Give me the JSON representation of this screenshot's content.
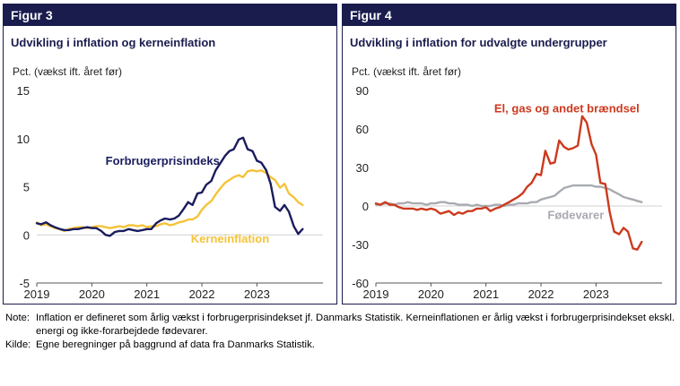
{
  "charts": [
    {
      "fig_label": "Figur 3",
      "title": "Udvikling i inflation og kerneinflation",
      "ylabel": "Pct. (vækst ift. året før)"
    },
    {
      "fig_label": "Figur 4",
      "title": "Udvikling i inflation for udvalgte undergrupper",
      "ylabel": "Pct. (vækst ift. året før)"
    }
  ],
  "chart_data": [
    {
      "type": "line",
      "ylim": [
        -5,
        15
      ],
      "yticks": [
        15,
        10,
        5,
        0,
        -5
      ],
      "xlim": [
        2019,
        2024.2
      ],
      "xticks": [
        2019,
        2020,
        2021,
        2022,
        2023
      ],
      "xtick_labels": [
        "2019",
        "2020",
        "2021",
        "2022",
        "2023"
      ],
      "grid": false,
      "series": [
        {
          "name": "Forbrugerprisindeks",
          "color": "#1a1c5e",
          "label_pos": [
            2020.25,
            7.3
          ],
          "points": [
            [
              2019.0,
              1.2
            ],
            [
              2019.08,
              1.1
            ],
            [
              2019.17,
              1.3
            ],
            [
              2019.25,
              1.0
            ],
            [
              2019.33,
              0.8
            ],
            [
              2019.42,
              0.6
            ],
            [
              2019.5,
              0.5
            ],
            [
              2019.58,
              0.5
            ],
            [
              2019.67,
              0.6
            ],
            [
              2019.75,
              0.6
            ],
            [
              2019.83,
              0.7
            ],
            [
              2019.92,
              0.8
            ],
            [
              2020.0,
              0.7
            ],
            [
              2020.08,
              0.7
            ],
            [
              2020.17,
              0.4
            ],
            [
              2020.25,
              0.0
            ],
            [
              2020.33,
              -0.1
            ],
            [
              2020.42,
              0.3
            ],
            [
              2020.5,
              0.4
            ],
            [
              2020.58,
              0.4
            ],
            [
              2020.67,
              0.6
            ],
            [
              2020.75,
              0.5
            ],
            [
              2020.83,
              0.4
            ],
            [
              2020.92,
              0.5
            ],
            [
              2021.0,
              0.6
            ],
            [
              2021.08,
              0.6
            ],
            [
              2021.17,
              1.2
            ],
            [
              2021.25,
              1.5
            ],
            [
              2021.33,
              1.7
            ],
            [
              2021.42,
              1.6
            ],
            [
              2021.5,
              1.7
            ],
            [
              2021.58,
              2.0
            ],
            [
              2021.67,
              2.7
            ],
            [
              2021.75,
              3.4
            ],
            [
              2021.83,
              3.1
            ],
            [
              2021.92,
              4.3
            ],
            [
              2022.0,
              4.4
            ],
            [
              2022.08,
              5.2
            ],
            [
              2022.17,
              5.6
            ],
            [
              2022.25,
              6.7
            ],
            [
              2022.33,
              7.4
            ],
            [
              2022.42,
              8.2
            ],
            [
              2022.5,
              8.7
            ],
            [
              2022.58,
              8.9
            ],
            [
              2022.67,
              9.9
            ],
            [
              2022.75,
              10.1
            ],
            [
              2022.83,
              8.9
            ],
            [
              2022.92,
              8.7
            ],
            [
              2023.0,
              7.7
            ],
            [
              2023.08,
              7.5
            ],
            [
              2023.17,
              6.7
            ],
            [
              2023.25,
              5.3
            ],
            [
              2023.33,
              2.9
            ],
            [
              2023.42,
              2.5
            ],
            [
              2023.5,
              3.1
            ],
            [
              2023.58,
              2.4
            ],
            [
              2023.67,
              0.9
            ],
            [
              2023.75,
              0.1
            ],
            [
              2023.83,
              0.6
            ]
          ]
        },
        {
          "name": "Kerneinflation",
          "color": "#f5c33a",
          "label_pos": [
            2021.8,
            -0.8
          ],
          "points": [
            [
              2019.0,
              1.3
            ],
            [
              2019.08,
              1.0
            ],
            [
              2019.17,
              1.1
            ],
            [
              2019.25,
              0.9
            ],
            [
              2019.33,
              0.7
            ],
            [
              2019.42,
              0.6
            ],
            [
              2019.5,
              0.4
            ],
            [
              2019.58,
              0.6
            ],
            [
              2019.67,
              0.7
            ],
            [
              2019.75,
              0.8
            ],
            [
              2019.83,
              0.8
            ],
            [
              2019.92,
              0.7
            ],
            [
              2020.0,
              0.8
            ],
            [
              2020.08,
              0.9
            ],
            [
              2020.17,
              0.9
            ],
            [
              2020.25,
              0.8
            ],
            [
              2020.33,
              0.7
            ],
            [
              2020.42,
              0.8
            ],
            [
              2020.5,
              0.9
            ],
            [
              2020.58,
              0.8
            ],
            [
              2020.67,
              1.0
            ],
            [
              2020.75,
              1.0
            ],
            [
              2020.83,
              0.9
            ],
            [
              2020.92,
              1.0
            ],
            [
              2021.0,
              0.8
            ],
            [
              2021.08,
              0.9
            ],
            [
              2021.17,
              0.9
            ],
            [
              2021.25,
              1.1
            ],
            [
              2021.33,
              1.2
            ],
            [
              2021.42,
              1.0
            ],
            [
              2021.5,
              1.1
            ],
            [
              2021.58,
              1.3
            ],
            [
              2021.67,
              1.4
            ],
            [
              2021.75,
              1.6
            ],
            [
              2021.83,
              1.6
            ],
            [
              2021.92,
              1.9
            ],
            [
              2022.0,
              2.6
            ],
            [
              2022.08,
              3.1
            ],
            [
              2022.17,
              3.5
            ],
            [
              2022.25,
              4.2
            ],
            [
              2022.33,
              4.8
            ],
            [
              2022.42,
              5.4
            ],
            [
              2022.5,
              5.7
            ],
            [
              2022.58,
              6.0
            ],
            [
              2022.67,
              6.2
            ],
            [
              2022.75,
              6.0
            ],
            [
              2022.83,
              6.6
            ],
            [
              2022.92,
              6.7
            ],
            [
              2023.0,
              6.6
            ],
            [
              2023.08,
              6.7
            ],
            [
              2023.17,
              6.4
            ],
            [
              2023.25,
              6.0
            ],
            [
              2023.33,
              5.7
            ],
            [
              2023.42,
              4.9
            ],
            [
              2023.5,
              5.3
            ],
            [
              2023.58,
              4.3
            ],
            [
              2023.67,
              3.9
            ],
            [
              2023.75,
              3.4
            ],
            [
              2023.83,
              3.1
            ]
          ]
        }
      ]
    },
    {
      "type": "line",
      "ylim": [
        -60,
        90
      ],
      "yticks": [
        90,
        60,
        30,
        0,
        -30,
        -60
      ],
      "xlim": [
        2019,
        2024.2
      ],
      "xticks": [
        2019,
        2020,
        2021,
        2022,
        2023
      ],
      "xtick_labels": [
        "2019",
        "2020",
        "2021",
        "2022",
        "2023"
      ],
      "grid": false,
      "series": [
        {
          "name": "El, gas og andet brændsel",
          "color": "#cc3a1e",
          "label_pos": [
            2021.15,
            73
          ],
          "points": [
            [
              2019.0,
              2
            ],
            [
              2019.08,
              1
            ],
            [
              2019.17,
              3
            ],
            [
              2019.25,
              1
            ],
            [
              2019.33,
              1
            ],
            [
              2019.42,
              -1
            ],
            [
              2019.5,
              -2
            ],
            [
              2019.58,
              -2
            ],
            [
              2019.67,
              -2
            ],
            [
              2019.75,
              -3
            ],
            [
              2019.83,
              -2
            ],
            [
              2019.92,
              -3
            ],
            [
              2020.0,
              -2
            ],
            [
              2020.08,
              -3
            ],
            [
              2020.17,
              -6
            ],
            [
              2020.25,
              -5
            ],
            [
              2020.33,
              -4
            ],
            [
              2020.42,
              -7
            ],
            [
              2020.5,
              -5
            ],
            [
              2020.58,
              -6
            ],
            [
              2020.67,
              -4
            ],
            [
              2020.75,
              -4
            ],
            [
              2020.83,
              -2
            ],
            [
              2020.92,
              -2
            ],
            [
              2021.0,
              -1
            ],
            [
              2021.08,
              -4
            ],
            [
              2021.17,
              -2
            ],
            [
              2021.25,
              -1
            ],
            [
              2021.33,
              1
            ],
            [
              2021.42,
              3
            ],
            [
              2021.5,
              5
            ],
            [
              2021.58,
              7
            ],
            [
              2021.67,
              10
            ],
            [
              2021.75,
              15
            ],
            [
              2021.83,
              18
            ],
            [
              2021.92,
              25
            ],
            [
              2022.0,
              24
            ],
            [
              2022.08,
              43
            ],
            [
              2022.17,
              33
            ],
            [
              2022.25,
              34
            ],
            [
              2022.33,
              51
            ],
            [
              2022.42,
              46
            ],
            [
              2022.5,
              44
            ],
            [
              2022.58,
              45
            ],
            [
              2022.67,
              47
            ],
            [
              2022.75,
              70
            ],
            [
              2022.83,
              65
            ],
            [
              2022.92,
              48
            ],
            [
              2023.0,
              40
            ],
            [
              2023.08,
              18
            ],
            [
              2023.17,
              17
            ],
            [
              2023.25,
              -5
            ],
            [
              2023.33,
              -20
            ],
            [
              2023.42,
              -22
            ],
            [
              2023.5,
              -17
            ],
            [
              2023.58,
              -20
            ],
            [
              2023.67,
              -33
            ],
            [
              2023.75,
              -34
            ],
            [
              2023.83,
              -28
            ]
          ]
        },
        {
          "name": "Fødevarer",
          "color": "#a8abb0",
          "label_pos": [
            2022.12,
            -10
          ],
          "points": [
            [
              2019.0,
              1
            ],
            [
              2019.08,
              1
            ],
            [
              2019.17,
              2
            ],
            [
              2019.25,
              2
            ],
            [
              2019.33,
              1
            ],
            [
              2019.42,
              2
            ],
            [
              2019.5,
              2
            ],
            [
              2019.58,
              3
            ],
            [
              2019.67,
              2
            ],
            [
              2019.75,
              2
            ],
            [
              2019.83,
              2
            ],
            [
              2019.92,
              1
            ],
            [
              2020.0,
              2
            ],
            [
              2020.08,
              2
            ],
            [
              2020.17,
              3
            ],
            [
              2020.25,
              3
            ],
            [
              2020.33,
              2
            ],
            [
              2020.42,
              2
            ],
            [
              2020.5,
              1
            ],
            [
              2020.58,
              1
            ],
            [
              2020.67,
              1
            ],
            [
              2020.75,
              0
            ],
            [
              2020.83,
              1
            ],
            [
              2020.92,
              0
            ],
            [
              2021.0,
              0
            ],
            [
              2021.08,
              0
            ],
            [
              2021.17,
              1
            ],
            [
              2021.25,
              1
            ],
            [
              2021.33,
              0
            ],
            [
              2021.42,
              1
            ],
            [
              2021.5,
              1
            ],
            [
              2021.58,
              2
            ],
            [
              2021.67,
              2
            ],
            [
              2021.75,
              2
            ],
            [
              2021.83,
              3
            ],
            [
              2021.92,
              3
            ],
            [
              2022.0,
              5
            ],
            [
              2022.08,
              6
            ],
            [
              2022.17,
              7
            ],
            [
              2022.25,
              8
            ],
            [
              2022.33,
              11
            ],
            [
              2022.42,
              14
            ],
            [
              2022.5,
              15
            ],
            [
              2022.58,
              16
            ],
            [
              2022.67,
              16
            ],
            [
              2022.75,
              16
            ],
            [
              2022.83,
              16
            ],
            [
              2022.92,
              16
            ],
            [
              2023.0,
              15
            ],
            [
              2023.08,
              15
            ],
            [
              2023.17,
              14
            ],
            [
              2023.25,
              13
            ],
            [
              2023.33,
              11
            ],
            [
              2023.42,
              9
            ],
            [
              2023.5,
              7
            ],
            [
              2023.58,
              6
            ],
            [
              2023.67,
              5
            ],
            [
              2023.75,
              4
            ],
            [
              2023.83,
              3
            ]
          ]
        }
      ]
    }
  ],
  "notes": [
    {
      "key": "Note:",
      "text": "Inflation er defineret som årlig vækst i forbrugerprisindekset jf. Danmarks Statistik. Kerneinflationen er årlig vækst i forbrugerprisindekset ekskl. energi og ikke-forarbejdede fødevarer."
    },
    {
      "key": "Kilde:",
      "text": "Egne beregninger på baggrund af data fra Danmarks Statistik."
    }
  ]
}
